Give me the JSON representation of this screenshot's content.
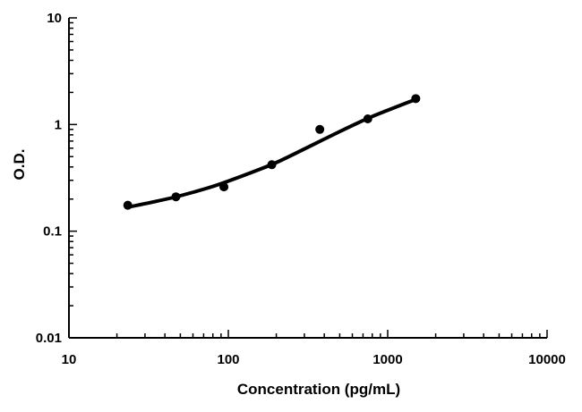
{
  "chart_data": {
    "type": "scatter",
    "xlabel": "Concentration (pg/mL)",
    "ylabel": "O.D.",
    "x_scale": "log",
    "y_scale": "log",
    "xlim": [
      10,
      10000
    ],
    "ylim": [
      0.01,
      10
    ],
    "x_ticks": [
      "10",
      "100",
      "1000",
      "10000"
    ],
    "y_ticks": [
      "10",
      "1",
      "0.1",
      "0.01"
    ],
    "grid": false,
    "points": [
      {
        "x": 23.4,
        "y": 0.175
      },
      {
        "x": 46.9,
        "y": 0.21
      },
      {
        "x": 93.8,
        "y": 0.26
      },
      {
        "x": 187.5,
        "y": 0.42
      },
      {
        "x": 375,
        "y": 0.9
      },
      {
        "x": 750,
        "y": 1.13
      },
      {
        "x": 1500,
        "y": 1.75
      }
    ],
    "fit_curve": {
      "description": "smooth fitted curve",
      "points": [
        {
          "x": 23.4,
          "y": 0.168
        },
        {
          "x": 35,
          "y": 0.19
        },
        {
          "x": 50,
          "y": 0.215
        },
        {
          "x": 75,
          "y": 0.255
        },
        {
          "x": 100,
          "y": 0.295
        },
        {
          "x": 150,
          "y": 0.37
        },
        {
          "x": 200,
          "y": 0.44
        },
        {
          "x": 300,
          "y": 0.59
        },
        {
          "x": 400,
          "y": 0.73
        },
        {
          "x": 600,
          "y": 0.98
        },
        {
          "x": 800,
          "y": 1.19
        },
        {
          "x": 1000,
          "y": 1.36
        },
        {
          "x": 1250,
          "y": 1.55
        },
        {
          "x": 1500,
          "y": 1.72
        }
      ]
    },
    "colors": {
      "marks": "#000000",
      "axes": "#000000",
      "background": "#ffffff"
    }
  }
}
